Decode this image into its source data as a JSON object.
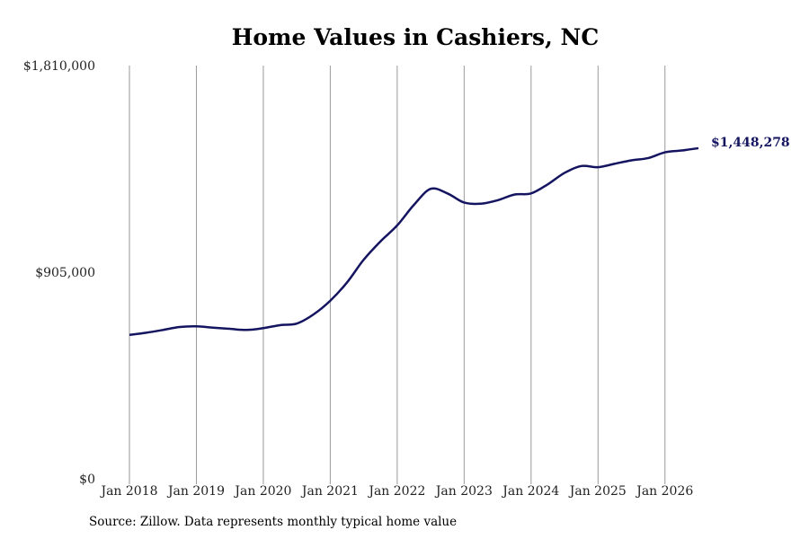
{
  "chart_data": {
    "type": "line",
    "title": "Home Values in Cashiers, NC",
    "xlabel": "",
    "ylabel": "",
    "ylim": [
      0,
      1810000
    ],
    "y_ticks": [
      {
        "value": 0,
        "label": "$0"
      },
      {
        "value": 905000,
        "label": "$905,000"
      },
      {
        "value": 1810000,
        "label": "$1,810,000"
      }
    ],
    "x_ticks": [
      {
        "value": 2018.0,
        "label": "Jan 2018"
      },
      {
        "value": 2019.0,
        "label": "Jan 2019"
      },
      {
        "value": 2020.0,
        "label": "Jan 2020"
      },
      {
        "value": 2021.0,
        "label": "Jan 2021"
      },
      {
        "value": 2022.0,
        "label": "Jan 2022"
      },
      {
        "value": 2023.0,
        "label": "Jan 2023"
      },
      {
        "value": 2024.0,
        "label": "Jan 2024"
      },
      {
        "value": 2025.0,
        "label": "Jan 2025"
      },
      {
        "value": 2026.0,
        "label": "Jan 2026"
      }
    ],
    "xlim": [
      2018.0,
      2026.5
    ],
    "grid": "vertical",
    "line_color": "#141460",
    "grid_color": "#9a9a9a",
    "end_label": "$1,448,278",
    "series": [
      {
        "points": [
          [
            2018.0,
            630000
          ],
          [
            2018.25,
            640000
          ],
          [
            2018.5,
            652000
          ],
          [
            2018.75,
            665000
          ],
          [
            2019.0,
            668000
          ],
          [
            2019.25,
            662000
          ],
          [
            2019.5,
            657000
          ],
          [
            2019.75,
            652000
          ],
          [
            2020.0,
            660000
          ],
          [
            2020.25,
            673000
          ],
          [
            2020.5,
            680000
          ],
          [
            2020.75,
            720000
          ],
          [
            2021.0,
            780000
          ],
          [
            2021.25,
            860000
          ],
          [
            2021.5,
            960000
          ],
          [
            2021.75,
            1040000
          ],
          [
            2022.0,
            1110000
          ],
          [
            2022.25,
            1200000
          ],
          [
            2022.5,
            1270000
          ],
          [
            2022.75,
            1250000
          ],
          [
            2023.0,
            1210000
          ],
          [
            2023.25,
            1205000
          ],
          [
            2023.5,
            1220000
          ],
          [
            2023.75,
            1245000
          ],
          [
            2024.0,
            1250000
          ],
          [
            2024.25,
            1290000
          ],
          [
            2024.5,
            1340000
          ],
          [
            2024.75,
            1370000
          ],
          [
            2025.0,
            1365000
          ],
          [
            2025.25,
            1380000
          ],
          [
            2025.5,
            1395000
          ],
          [
            2025.75,
            1405000
          ],
          [
            2026.0,
            1430000
          ],
          [
            2026.25,
            1438000
          ],
          [
            2026.5,
            1448278
          ]
        ]
      }
    ]
  },
  "source_note": "Source: Zillow. Data represents monthly typical home value"
}
